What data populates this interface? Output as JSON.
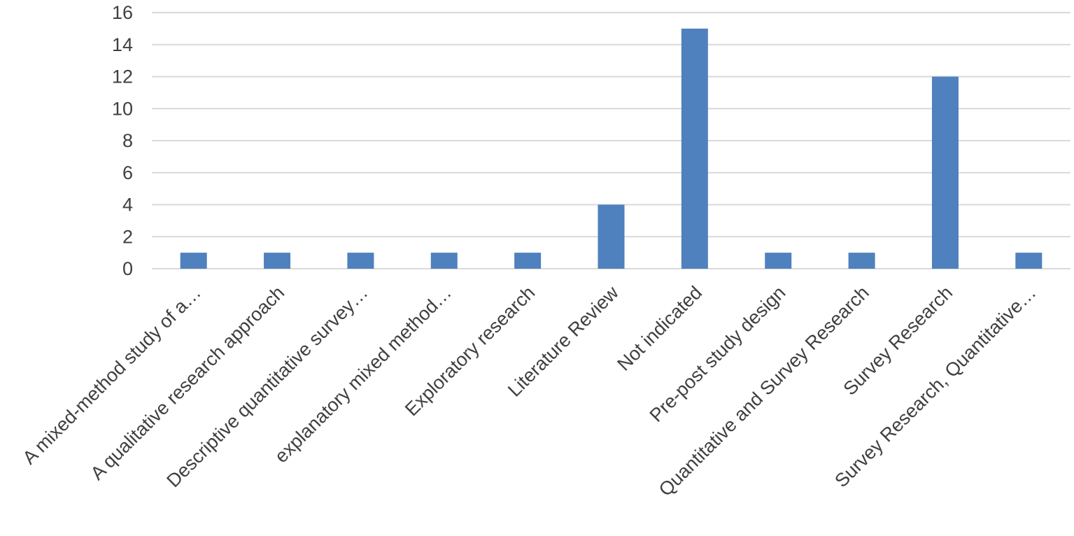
{
  "chart_data": {
    "type": "bar",
    "categories": [
      "A mixed-method study of a…",
      "A qualitative research approach",
      "Descriptive quantitative survey…",
      "explanatory mixed method…",
      "Exploratory research",
      "Literature Review",
      "Not indicated",
      "Pre-post study design",
      "Quantitative and Survey Research",
      "Survey Research",
      "Survey Research, Quantitative…"
    ],
    "values": [
      1,
      1,
      1,
      1,
      1,
      4,
      15,
      1,
      1,
      12,
      1
    ],
    "ylim": [
      0,
      16
    ],
    "yticks": [
      "0",
      "2",
      "4",
      "6",
      "8",
      "10",
      "12",
      "14",
      "16"
    ],
    "grid": true,
    "legend": "none",
    "colors": {
      "bar": "#4e81bd",
      "grid": "#d9d9d9",
      "text": "#404040"
    }
  }
}
